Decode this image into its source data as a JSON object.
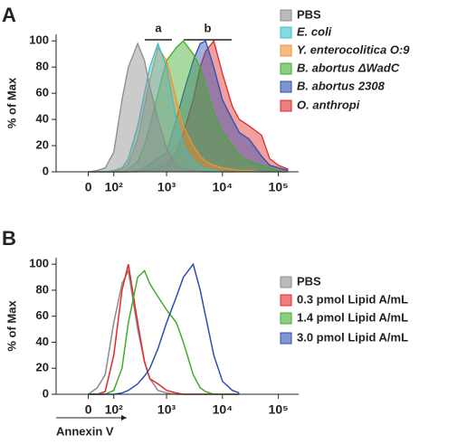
{
  "chart_data": [
    {
      "type": "area",
      "panel": "A",
      "y_label": "% of Max",
      "annotations": [
        "a",
        "b"
      ],
      "x": [
        0,
        30,
        60,
        100,
        150,
        200,
        300,
        400,
        500,
        700,
        1000,
        1500,
        2000,
        3000,
        4000,
        5000,
        7000,
        10000,
        15000,
        20000,
        30000,
        50000,
        70000,
        100000,
        150000
      ],
      "xlim": [
        -140,
        230000
      ],
      "xticks": [
        0,
        {
          "value": 100,
          "label": "10²"
        },
        {
          "value": 1000,
          "label": "10³"
        },
        {
          "value": 10000,
          "label": "10⁴"
        },
        {
          "value": 100000,
          "label": "10⁵"
        }
      ],
      "ylim": [
        0,
        105
      ],
      "yticks": [
        0,
        20,
        40,
        60,
        80,
        100
      ],
      "series": [
        {
          "name": "PBS",
          "color": "#8c8c8c",
          "values": [
            0,
            1,
            3,
            15,
            55,
            80,
            98,
            85,
            65,
            40,
            18,
            5,
            2,
            1,
            0,
            0,
            0,
            0,
            0,
            0,
            0,
            0,
            0,
            0,
            0
          ]
        },
        {
          "name": "E. coli",
          "color": "#3bbfcf",
          "values": [
            0,
            0,
            0,
            1,
            3,
            10,
            35,
            60,
            80,
            98,
            80,
            40,
            20,
            8,
            4,
            2,
            1,
            0,
            0,
            0,
            0,
            0,
            0,
            0,
            0
          ]
        },
        {
          "name": "Y. enterocolitica O:9",
          "color": "#f09030",
          "values": [
            0,
            0,
            0,
            0,
            2,
            6,
            25,
            50,
            70,
            95,
            85,
            55,
            35,
            20,
            12,
            8,
            5,
            3,
            2,
            1,
            1,
            0,
            0,
            0,
            0
          ]
        },
        {
          "name": "B. abortus ΔWadC",
          "color": "#3fae2a",
          "values": [
            0,
            0,
            0,
            0,
            0,
            2,
            8,
            20,
            35,
            60,
            85,
            95,
            100,
            90,
            80,
            65,
            45,
            30,
            20,
            12,
            8,
            5,
            3,
            1,
            0
          ]
        },
        {
          "name": "B. abortus 2308",
          "color": "#2b4fb0",
          "values": [
            0,
            0,
            0,
            0,
            0,
            0,
            1,
            3,
            6,
            10,
            15,
            40,
            60,
            85,
            98,
            100,
            80,
            55,
            40,
            30,
            25,
            12,
            5,
            3,
            1
          ]
        },
        {
          "name": "O. anthropi",
          "color": "#e02a2a",
          "values": [
            0,
            0,
            0,
            0,
            0,
            0,
            0,
            1,
            2,
            3,
            5,
            15,
            30,
            55,
            80,
            92,
            100,
            75,
            50,
            40,
            35,
            28,
            10,
            5,
            2
          ]
        }
      ]
    },
    {
      "type": "line",
      "panel": "B",
      "y_label": "% of Max",
      "x_label": "Annexin V",
      "x": [
        0,
        30,
        60,
        100,
        150,
        200,
        300,
        400,
        500,
        700,
        1000,
        1500,
        2000,
        3000,
        4000,
        5000,
        7000,
        10000,
        15000,
        20000
      ],
      "xlim": [
        -140,
        230000
      ],
      "xticks": [
        0,
        {
          "value": 100,
          "label": "10²"
        },
        {
          "value": 1000,
          "label": "10³"
        },
        {
          "value": 10000,
          "label": "10⁴"
        },
        {
          "value": 100000,
          "label": "10⁵"
        }
      ],
      "ylim": [
        0,
        105
      ],
      "yticks": [
        0,
        20,
        40,
        60,
        80,
        100
      ],
      "series": [
        {
          "name": "PBS",
          "color": "#8c8c8c",
          "values": [
            0,
            5,
            15,
            55,
            85,
            95,
            50,
            25,
            12,
            3,
            1,
            0,
            0,
            0,
            0,
            0,
            0,
            0,
            0,
            0
          ]
        },
        {
          "name": "0.3 pmol Lipid A/mL",
          "color": "#e02a2a",
          "values": [
            0,
            0,
            2,
            30,
            80,
            100,
            55,
            25,
            12,
            8,
            3,
            1,
            0,
            0,
            0,
            0,
            0,
            0,
            0,
            0
          ]
        },
        {
          "name": "1.4 pmol Lipid A/mL",
          "color": "#3fae2a",
          "values": [
            0,
            0,
            0,
            3,
            20,
            55,
            90,
            95,
            85,
            75,
            65,
            55,
            40,
            15,
            5,
            2,
            0,
            0,
            0,
            0
          ]
        },
        {
          "name": "3.0 pmol Lipid A/mL",
          "color": "#2b4fb0",
          "values": [
            0,
            0,
            0,
            0,
            1,
            3,
            8,
            14,
            20,
            35,
            55,
            75,
            90,
            100,
            80,
            60,
            30,
            10,
            3,
            1
          ]
        }
      ]
    }
  ]
}
